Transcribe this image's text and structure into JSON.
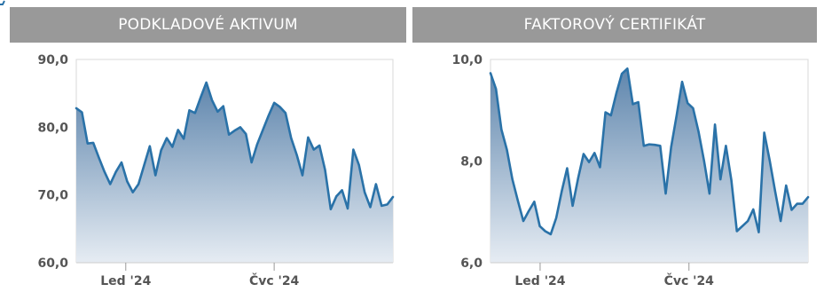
{
  "colors": {
    "header_bg": "#999999",
    "header_text": "#ffffff",
    "line": "#2a72a8",
    "fill_top": "#5f86ad",
    "fill_bottom": "#e6ecf3",
    "plot_border": "#d8d8d8",
    "tick_text": "#555555",
    "accent": "#2a72a8"
  },
  "panels": {
    "left": {
      "title": "PODKLADOVÉ AKTIVUM"
    },
    "right": {
      "title": "FAKTOROVÝ CERTIFIKÁT"
    }
  },
  "chart_data": [
    {
      "type": "area",
      "ylim": [
        60,
        90
      ],
      "y_ticks": [
        "90,0",
        "80,0",
        "70,0",
        "60,0"
      ],
      "y_tick_values": [
        90,
        80,
        70,
        60
      ],
      "x_ticks": [
        "Led '24",
        "Čvc '24"
      ],
      "x_tick_positions": [
        10,
        40
      ],
      "x_range": [
        0,
        64
      ],
      "grid": false,
      "values": [
        82.8,
        82.2,
        77.6,
        77.7,
        75.5,
        73.4,
        71.6,
        73.4,
        74.8,
        72.0,
        70.4,
        71.6,
        74.4,
        77.2,
        72.9,
        76.6,
        78.4,
        77.1,
        79.6,
        78.3,
        82.5,
        82.1,
        84.4,
        86.6,
        84.0,
        82.3,
        83.1,
        78.9,
        79.5,
        80.0,
        79.0,
        74.8,
        77.5,
        79.6,
        81.7,
        83.6,
        83.0,
        82.1,
        78.4,
        75.9,
        72.9,
        78.5,
        76.7,
        77.3,
        73.7,
        67.9,
        69.8,
        70.7,
        68.0,
        76.7,
        74.4,
        70.4,
        68.2,
        71.6,
        68.4,
        68.6,
        69.7
      ]
    },
    {
      "type": "area",
      "ylim": [
        6,
        10
      ],
      "y_ticks": [
        "10,0",
        "8,0",
        "6,0"
      ],
      "y_tick_values": [
        10,
        8,
        6
      ],
      "x_ticks": [
        "Led '24",
        "Čvc '24"
      ],
      "x_tick_positions": [
        10,
        40
      ],
      "x_range": [
        0,
        64
      ],
      "grid": false,
      "values": [
        9.73,
        9.42,
        8.62,
        8.22,
        7.64,
        7.22,
        6.82,
        7.02,
        7.2,
        6.72,
        6.62,
        6.56,
        6.88,
        7.4,
        7.86,
        7.12,
        7.66,
        8.14,
        7.98,
        8.16,
        7.88,
        8.96,
        8.9,
        9.34,
        9.72,
        9.82,
        9.12,
        9.16,
        8.3,
        8.33,
        8.32,
        8.3,
        7.36,
        8.28,
        8.9,
        9.56,
        9.14,
        9.04,
        8.58,
        8.01,
        7.36,
        8.72,
        7.64,
        8.3,
        7.62,
        6.62,
        6.72,
        6.82,
        7.05,
        6.6,
        8.56,
        8.01,
        7.4,
        6.82,
        7.52,
        7.04,
        7.16,
        7.16,
        7.29
      ]
    }
  ]
}
